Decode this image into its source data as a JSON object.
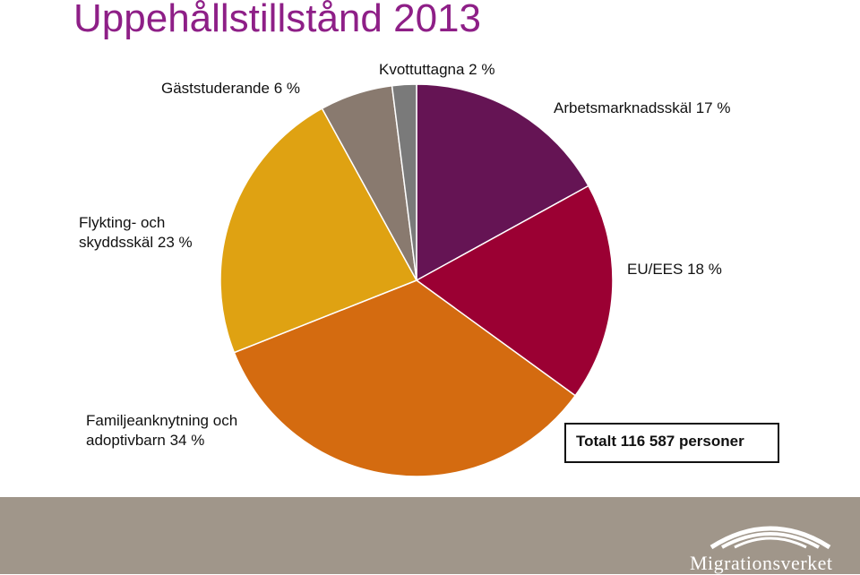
{
  "title": "Uppehållstillstånd 2013",
  "total_label": "Totalt 116 587 personer",
  "footer": {
    "logo_text": "Migrationsverket"
  },
  "chart_data": {
    "type": "pie",
    "title": "Uppehållstillstånd 2013",
    "slices": [
      {
        "label": "Arbetsmarknadsskäl 17 %",
        "value": 17,
        "color": "#651454"
      },
      {
        "label": "EU/EES 18 %",
        "value": 18,
        "color": "#9b0033"
      },
      {
        "label": "Familjeanknytning och adoptivbarn 34 %",
        "value": 34,
        "color": "#d46b10"
      },
      {
        "label": "Flykting- och skyddsskäl 23 %",
        "value": 23,
        "color": "#dfa212"
      },
      {
        "label": "Gäststuderande 6 %",
        "value": 6,
        "color": "#897a6f"
      },
      {
        "label": "Kvottuttagna 2 %",
        "value": 2,
        "color": "#7a7a7a"
      }
    ],
    "labels": {
      "arbete": "Arbetsmarknadsskäl 17 %",
      "eu": "EU/EES 18 %",
      "familj_1": "Familjeanknytning och",
      "familj_2": "adoptivbarn 34 %",
      "flykting_1": "Flykting- och",
      "flykting_2": "skyddsskäl 23 %",
      "gast": "Gäststuderande 6 %",
      "kvot": "Kvottuttagna 2 %"
    }
  }
}
